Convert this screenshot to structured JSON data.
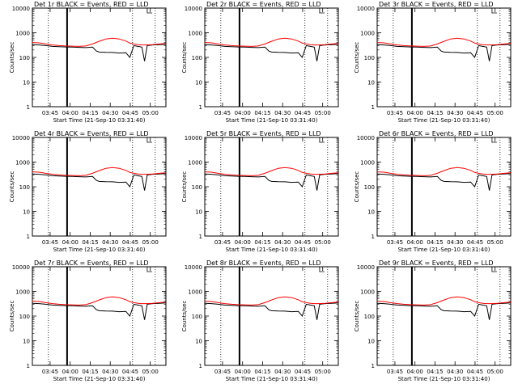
{
  "colors": {
    "events": "#000000",
    "lld": "#ff0000",
    "axis": "#000000",
    "background": "#ffffff"
  },
  "common": {
    "xlabel": "Start Time (21-Sep-10 03:31:40)",
    "ylabel": "Counts/sec",
    "title_suffix": "BLACK = Events, RED = LLD",
    "x_tick_labels": [
      "03:45",
      "04:00",
      "04:15",
      "04:30",
      "04:45",
      "05:00"
    ],
    "y_tick_labels": [
      "1",
      "10",
      "100",
      "1000",
      "10000"
    ],
    "scale": "log",
    "ylim": [
      1,
      10000
    ],
    "xlim_minutes_after_start": [
      0,
      100
    ]
  },
  "panels": [
    {
      "label": "Det 1r",
      "title": "Det 1r BLACK = Events, RED = LLD"
    },
    {
      "label": "Det 2r",
      "title": "Det 2r BLACK = Events, RED = LLD"
    },
    {
      "label": "Det 3r",
      "title": "Det 3r BLACK = Events, RED = LLD"
    },
    {
      "label": "Det 4r",
      "title": "Det 4r BLACK = Events, RED = LLD"
    },
    {
      "label": "Det 5r",
      "title": "Det 5r BLACK = Events, RED = LLD"
    },
    {
      "label": "Det 6r",
      "title": "Det 6r BLACK = Events, RED = LLD"
    },
    {
      "label": "Det 7r",
      "title": "Det 7r BLACK = Events, RED = LLD"
    },
    {
      "label": "Det 8r",
      "title": "Det 8r BLACK = Events, RED = LLD"
    },
    {
      "label": "Det 9r",
      "title": "Det 9r BLACK = Events, RED = LLD"
    }
  ],
  "chart_data": {
    "type": "line",
    "layout": "3x3 grid",
    "x_ticks_minutes_after_start": [
      13.3,
      28.3,
      43.3,
      58.3,
      73.3,
      88.3
    ],
    "vertical_markers_minutes_after_start": {
      "dotted": [
        12,
        75,
        92
      ],
      "solid": [
        26
      ]
    },
    "series": [
      {
        "name": "Events",
        "color": "#000000",
        "x": [
          0,
          5,
          10,
          15,
          20,
          25,
          30,
          35,
          40,
          45,
          48,
          50,
          55,
          60,
          65,
          70,
          73,
          76,
          79,
          82,
          84,
          86,
          90,
          95,
          100
        ],
        "y": [
          330,
          320,
          300,
          280,
          270,
          265,
          260,
          255,
          250,
          260,
          180,
          165,
          160,
          158,
          150,
          155,
          100,
          300,
          280,
          260,
          70,
          300,
          320,
          330,
          340
        ]
      },
      {
        "name": "LLD",
        "color": "#ff0000",
        "x": [
          0,
          5,
          10,
          15,
          20,
          25,
          30,
          35,
          40,
          45,
          50,
          55,
          60,
          65,
          70,
          73,
          76,
          79,
          82,
          85,
          90,
          95,
          100
        ],
        "y": [
          400,
          390,
          350,
          320,
          300,
          290,
          285,
          280,
          290,
          350,
          450,
          560,
          600,
          560,
          460,
          380,
          350,
          330,
          320,
          320,
          330,
          350,
          370
        ]
      }
    ]
  }
}
